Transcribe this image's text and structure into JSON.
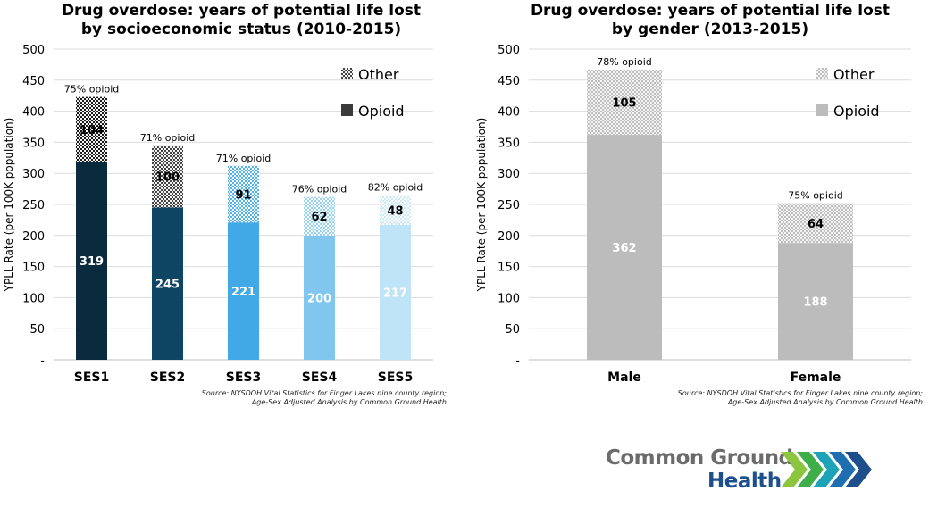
{
  "chart_data": [
    {
      "type": "bar",
      "stacked": true,
      "title_lines": [
        "Drug overdose: years of potential life lost",
        "by socioeconomic status (2010-2015)"
      ],
      "ylabel": "YPLL Rate (per 100K population)",
      "ylim": [
        0,
        500
      ],
      "yticks": [
        "-",
        "50",
        "100",
        "150",
        "200",
        "250",
        "300",
        "350",
        "400",
        "450",
        "500"
      ],
      "grid": true,
      "legend_position": "top-right",
      "categories": [
        "SES1",
        "SES2",
        "SES3",
        "SES4",
        "SES5"
      ],
      "series": [
        {
          "name": "Opioid",
          "values": [
            319,
            245,
            221,
            200,
            217
          ],
          "labels": [
            "319",
            "245",
            "221",
            "200",
            "217"
          ]
        },
        {
          "name": "Other",
          "values": [
            104,
            100,
            91,
            62,
            48
          ],
          "labels": [
            "104",
            "100",
            "91",
            "62",
            "48"
          ]
        }
      ],
      "top_annotations": [
        "75% opioid",
        "71% opioid",
        "71% opioid",
        "76% opioid",
        "82% opioid"
      ],
      "opioid_colors": [
        "#0a2b3e",
        "#0e4562",
        "#40a9e6",
        "#80c6ef",
        "#bfe3f7"
      ],
      "legend_colors": {
        "Opioid": "#3a3a3a",
        "Other": "#3a3a3a"
      },
      "source_lines": [
        "Source: NYSDOH Vital Statistics for Finger Lakes nine county region;",
        "Age-Sex Adjusted Analysis by Common Ground Health"
      ]
    },
    {
      "type": "bar",
      "stacked": true,
      "title_lines": [
        "Drug overdose: years of potential life lost",
        "by gender (2013-2015)"
      ],
      "ylabel": "YPLL Rate (per 100K population)",
      "ylim": [
        0,
        500
      ],
      "yticks": [
        "-",
        "50",
        "100",
        "150",
        "200",
        "250",
        "300",
        "350",
        "400",
        "450",
        "500"
      ],
      "grid": true,
      "legend_position": "top-right",
      "categories": [
        "Male",
        "Female"
      ],
      "series": [
        {
          "name": "Opioid",
          "values": [
            362,
            188
          ],
          "labels": [
            "362",
            "188"
          ]
        },
        {
          "name": "Other",
          "values": [
            105,
            64
          ],
          "labels": [
            "105",
            "64"
          ]
        }
      ],
      "top_annotations": [
        "78% opioid",
        "75% opioid"
      ],
      "opioid_colors": [
        "#bcbcbc",
        "#bcbcbc"
      ],
      "legend_colors": {
        "Opioid": "#bcbcbc",
        "Other": "#d0d0d0"
      },
      "source_lines": [
        "Source: NYSDOH Vital Statistics for Finger Lakes nine county region;",
        "Age-Sex Adjusted Analysis by Common Ground Health"
      ]
    }
  ],
  "logo": {
    "line1": "Common Ground",
    "line2": "Health",
    "chevron_colors": [
      "#8cc63f",
      "#3fae49",
      "#1da2b8",
      "#1f6fb0",
      "#1c4f8c"
    ]
  }
}
